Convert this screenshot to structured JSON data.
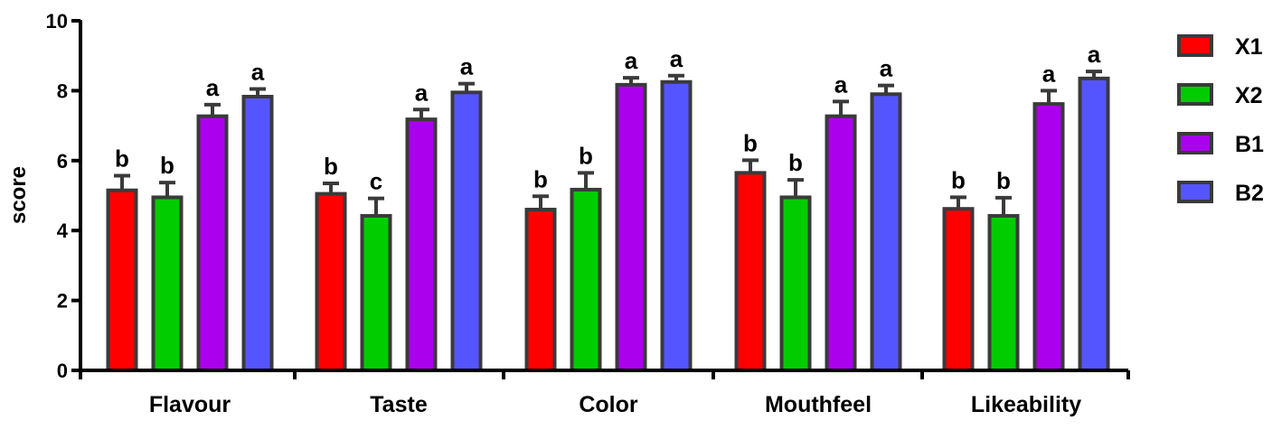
{
  "chart_data": {
    "type": "bar",
    "title": "",
    "xlabel": "",
    "ylabel": "score",
    "ylim": [
      0,
      10
    ],
    "yticks": [
      0,
      2,
      4,
      6,
      8,
      10
    ],
    "legend_position": "right",
    "grid": false,
    "categories": [
      "Flavour",
      "Taste",
      "Color",
      "Mouthfeel",
      "Likeability"
    ],
    "series": [
      {
        "name": "X1",
        "color": "#ff0000",
        "values": [
          5.15,
          5.05,
          4.6,
          5.65,
          4.62
        ],
        "errors": [
          0.42,
          0.3,
          0.38,
          0.36,
          0.33
        ],
        "labels": [
          "b",
          "b",
          "b",
          "b",
          "b"
        ]
      },
      {
        "name": "X2",
        "color": "#00cc00",
        "values": [
          4.95,
          4.42,
          5.17,
          4.95,
          4.42
        ],
        "errors": [
          0.42,
          0.5,
          0.48,
          0.5,
          0.52
        ],
        "labels": [
          "b",
          "c",
          "b",
          "b",
          "b"
        ]
      },
      {
        "name": "B1",
        "color": "#aa00ee",
        "values": [
          7.27,
          7.18,
          8.17,
          7.27,
          7.62
        ],
        "errors": [
          0.33,
          0.28,
          0.2,
          0.42,
          0.38
        ],
        "labels": [
          "a",
          "a",
          "a",
          "a",
          "a"
        ]
      },
      {
        "name": "B2",
        "color": "#5555ff",
        "values": [
          7.83,
          7.95,
          8.25,
          7.9,
          8.35
        ],
        "errors": [
          0.22,
          0.25,
          0.18,
          0.25,
          0.2
        ],
        "labels": [
          "a",
          "a",
          "a",
          "a",
          "a"
        ]
      }
    ]
  }
}
